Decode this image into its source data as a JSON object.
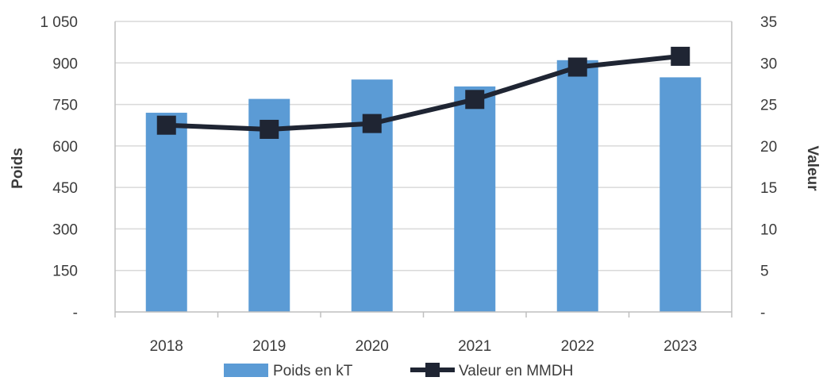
{
  "chart_data": {
    "type": "bar",
    "categories": [
      "2018",
      "2019",
      "2020",
      "2021",
      "2022",
      "2023"
    ],
    "series": [
      {
        "name": "Poids en kT",
        "type": "bar",
        "axis": "left",
        "color": "#5b9bd5",
        "values": [
          720,
          770,
          840,
          815,
          910,
          848
        ]
      },
      {
        "name": "Valeur en MMDH",
        "type": "line",
        "axis": "right",
        "color": "#1f2533",
        "values": [
          22.5,
          22.0,
          22.7,
          25.6,
          29.5,
          30.8
        ]
      }
    ],
    "ylabel": "Poids",
    "ylabel_right": "Valeur",
    "ylim": [
      0,
      1050
    ],
    "ylim_right": [
      0,
      35
    ],
    "yticks_left": [
      {
        "value": 0,
        "label": "-"
      },
      {
        "value": 150,
        "label": "150"
      },
      {
        "value": 300,
        "label": "300"
      },
      {
        "value": 450,
        "label": "450"
      },
      {
        "value": 600,
        "label": "600"
      },
      {
        "value": 750,
        "label": "750"
      },
      {
        "value": 900,
        "label": "900"
      },
      {
        "value": 1050,
        "label": "1 050"
      }
    ],
    "yticks_right": [
      {
        "value": 0,
        "label": "-"
      },
      {
        "value": 5,
        "label": "5"
      },
      {
        "value": 10,
        "label": "10"
      },
      {
        "value": 15,
        "label": "15"
      },
      {
        "value": 20,
        "label": "20"
      },
      {
        "value": 25,
        "label": "25"
      },
      {
        "value": 30,
        "label": "30"
      },
      {
        "value": 35,
        "label": "35"
      }
    ],
    "grid": true,
    "legend_position": "bottom-center",
    "gridline_color": "#d9d9d9",
    "line_marker": "square"
  }
}
